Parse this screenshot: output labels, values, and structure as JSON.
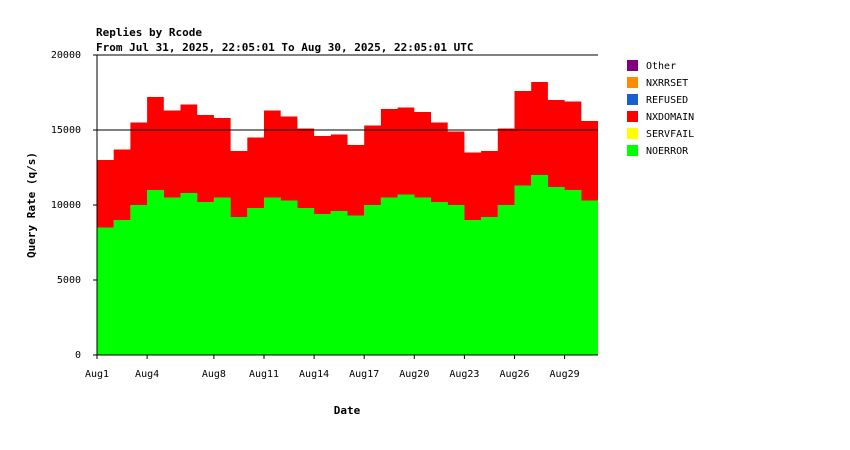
{
  "chart_data": {
    "type": "area",
    "title": "Replies by Rcode",
    "subtitle": "From Jul 31, 2025, 22:05:01 To Aug 30, 2025, 22:05:01 UTC",
    "xlabel": "Date",
    "ylabel": "Query Rate (q/s)",
    "ylim": [
      0,
      20000
    ],
    "yticks": [
      0,
      5000,
      10000,
      15000,
      20000
    ],
    "xlim": [
      1,
      31
    ],
    "xticks": [
      {
        "day": 1,
        "label": "Aug1"
      },
      {
        "day": 4,
        "label": "Aug4"
      },
      {
        "day": 8,
        "label": "Aug8"
      },
      {
        "day": 11,
        "label": "Aug11"
      },
      {
        "day": 14,
        "label": "Aug14"
      },
      {
        "day": 17,
        "label": "Aug17"
      },
      {
        "day": 20,
        "label": "Aug20"
      },
      {
        "day": 23,
        "label": "Aug23"
      },
      {
        "day": 26,
        "label": "Aug26"
      },
      {
        "day": 29,
        "label": "Aug29"
      }
    ],
    "grid": "horizontal-line-at-15000",
    "legend_position": "right",
    "stacked": true,
    "legend": [
      {
        "name": "Other",
        "color": "#800080"
      },
      {
        "name": "NXRRSET",
        "color": "#ff8c00"
      },
      {
        "name": "REFUSED",
        "color": "#1a5fd0"
      },
      {
        "name": "NXDOMAIN",
        "color": "#ff0000"
      },
      {
        "name": "SERVFAIL",
        "color": "#ffff00"
      },
      {
        "name": "NOERROR",
        "color": "#00ff00"
      }
    ],
    "daily_approx": {
      "x": [
        1,
        2,
        3,
        4,
        5,
        6,
        7,
        8,
        9,
        10,
        11,
        12,
        13,
        14,
        15,
        16,
        17,
        18,
        19,
        20,
        21,
        22,
        23,
        24,
        25,
        26,
        27,
        28,
        29,
        30
      ],
      "series": [
        {
          "name": "NOERROR",
          "values": [
            8500,
            9000,
            10000,
            11000,
            10500,
            10800,
            10200,
            10500,
            9200,
            9800,
            10500,
            10300,
            9800,
            9400,
            9600,
            9300,
            10000,
            10500,
            10700,
            10500,
            10200,
            10000,
            9000,
            9200,
            10000,
            11300,
            12000,
            11200,
            11000,
            10300
          ]
        },
        {
          "name": "NXDOMAIN",
          "values": [
            4500,
            4700,
            5500,
            6200,
            5800,
            5900,
            5800,
            5300,
            4400,
            4700,
            5800,
            5600,
            5300,
            5200,
            5100,
            4700,
            5300,
            5900,
            5800,
            5700,
            5300,
            4900,
            4500,
            4400,
            5100,
            6300,
            6200,
            5800,
            5900,
            5300
          ]
        },
        {
          "name": "SERVFAIL",
          "values": [
            0,
            0,
            0,
            0,
            0,
            0,
            0,
            0,
            0,
            0,
            0,
            0,
            0,
            0,
            0,
            0,
            0,
            0,
            0,
            0,
            0,
            0,
            0,
            0,
            0,
            0,
            0,
            0,
            0,
            0
          ]
        },
        {
          "name": "REFUSED",
          "values": [
            0,
            0,
            0,
            0,
            0,
            0,
            0,
            0,
            0,
            0,
            0,
            0,
            0,
            0,
            0,
            0,
            0,
            0,
            0,
            0,
            0,
            0,
            0,
            0,
            0,
            0,
            0,
            0,
            0,
            0
          ]
        },
        {
          "name": "NXRRSET",
          "values": [
            0,
            0,
            0,
            0,
            0,
            0,
            0,
            0,
            0,
            0,
            0,
            0,
            0,
            0,
            0,
            0,
            0,
            0,
            0,
            0,
            0,
            0,
            0,
            0,
            0,
            0,
            0,
            0,
            0,
            0
          ]
        },
        {
          "name": "Other",
          "values": [
            0,
            0,
            0,
            0,
            0,
            0,
            0,
            0,
            0,
            0,
            0,
            0,
            0,
            0,
            0,
            0,
            0,
            0,
            0,
            0,
            0,
            0,
            0,
            0,
            0,
            0,
            0,
            0,
            0,
            0
          ]
        }
      ]
    }
  }
}
